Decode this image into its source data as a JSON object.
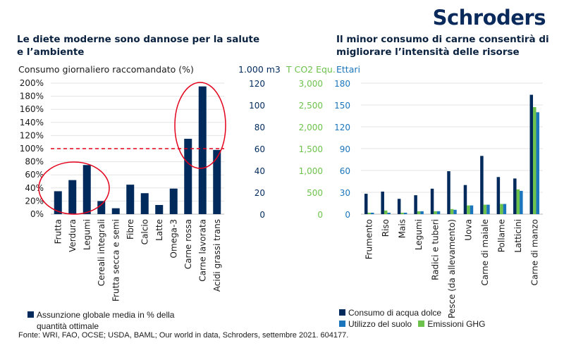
{
  "logo": "Schroders",
  "left": {
    "title_line1": "Le diete moderne sono dannose per la salute",
    "title_line2": "e l’ambiente",
    "unit": "Consumo giornaliero raccomandato (%)",
    "legend": "Assunzione globale media in % della quantità ottimale"
  },
  "right": {
    "title_line1": "Il minor consumo di carne consentirà di",
    "title_line2": "migliorare l’intensità delle risorse",
    "unit_water": "1.000 m3",
    "unit_co2": "T CO2 Equ.",
    "unit_land": "Ettari"
  },
  "source": "Fonte: WRI, FAO, OCSE; USDA, BAML; Our world in data, Schroders, settembre 2021. 604177.",
  "colors": {
    "navy": "#002A5C",
    "blue": "#1B75BC",
    "green": "#6CC24A",
    "red": "#E3001B"
  },
  "chart_data": [
    {
      "type": "bar",
      "ylabel": "Consumo giornaliero raccomandato (%)",
      "ylim": [
        0,
        200
      ],
      "yticks": [
        "0%",
        "20%",
        "40%",
        "60%",
        "80%",
        "100%",
        "120%",
        "140%",
        "160%",
        "180%",
        "200%"
      ],
      "reference_line": 100,
      "grid": true,
      "categories": [
        "Frutta",
        "Verdura",
        "Legumi",
        "Cereali integrali",
        "Frutta secca e semi",
        "Fibre",
        "Calcio",
        "Latte",
        "Omega-3",
        "Carne rossa",
        "Carne lavorata",
        "Acidi grassi trans"
      ],
      "series": [
        {
          "name": "Assunzione globale media in % della quantità ottimale",
          "color": "#002A5C",
          "values": [
            35,
            52,
            75,
            20,
            9,
            45,
            32,
            14,
            39,
            115,
            195,
            98
          ]
        }
      ],
      "annotations": [
        "ellipse around Frutta–Frutta secca e semi",
        "ellipse around Carne rossa–Carne lavorata"
      ]
    },
    {
      "type": "bar",
      "ylim": [
        0,
        180
      ],
      "axes": [
        {
          "label": "1.000 m3",
          "ticks": [
            "0",
            "20",
            "40",
            "60",
            "80",
            "100",
            "120"
          ],
          "color": "#002A5C"
        },
        {
          "label": "T CO2 Equ.",
          "ticks": [
            "0",
            "500",
            "1,000",
            "1,500",
            "2,000",
            "2,500",
            "3,000"
          ],
          "color": "#6CC24A"
        },
        {
          "label": "Ettari",
          "ticks": [
            "0",
            "30",
            "60",
            "90",
            "120",
            "150",
            "180"
          ],
          "color": "#1B75BC"
        }
      ],
      "grid": true,
      "legend": "bottom",
      "categories": [
        "Frumento",
        "Riso",
        "Mais",
        "Legumi",
        "Radici e tuberi",
        "Pesce (da allevamento)",
        "Uova",
        "Carne di maiale",
        "Pollame",
        "Latticini",
        "Carne di manzo"
      ],
      "series": [
        {
          "name": "Consumo di acqua dolce",
          "color": "#002A5C",
          "values": [
            28,
            31,
            21,
            26,
            35,
            59,
            40,
            80,
            51,
            49,
            164
          ]
        },
        {
          "name": "Emissioni GHG",
          "color": "#6CC24A",
          "values": [
            2,
            5,
            2,
            4,
            4,
            7,
            12,
            13,
            14,
            34,
            147
          ]
        },
        {
          "name": "Utilizzo del suolo",
          "color": "#1B75BC",
          "values": [
            2,
            2,
            2,
            4,
            4,
            6,
            12,
            13,
            14,
            32,
            140
          ]
        }
      ]
    }
  ]
}
